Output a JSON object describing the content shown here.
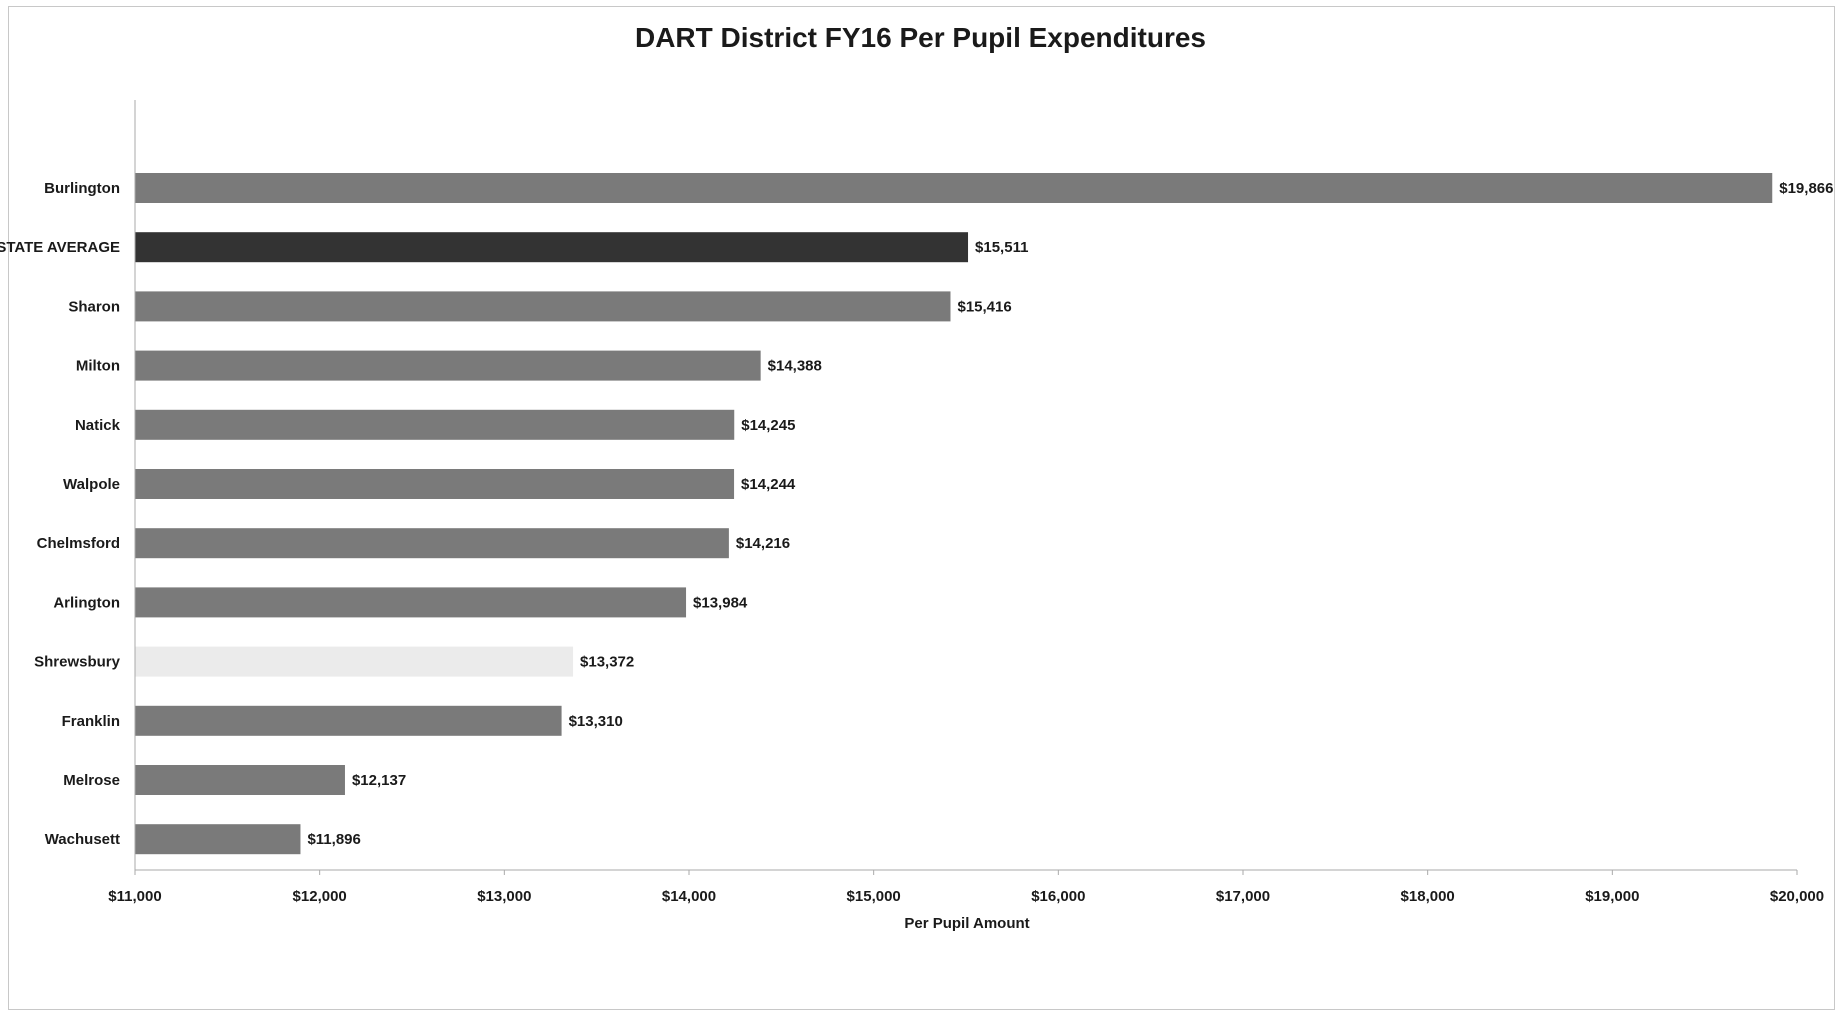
{
  "chart_data": {
    "type": "bar",
    "orientation": "horizontal",
    "title": "DART District FY16 Per Pupil Expenditures",
    "xlabel": "Per Pupil Amount",
    "ylabel": "",
    "xlim": [
      11000,
      20000
    ],
    "x_ticks": [
      11000,
      12000,
      13000,
      14000,
      15000,
      16000,
      17000,
      18000,
      19000,
      20000
    ],
    "x_tick_labels": [
      "$11,000",
      "$12,000",
      "$13,000",
      "$14,000",
      "$15,000",
      "$16,000",
      "$17,000",
      "$18,000",
      "$19,000",
      "$20,000"
    ],
    "grid": false,
    "legend": "none",
    "categories": [
      "Burlington",
      "STATE AVERAGE",
      "Sharon",
      "Milton",
      "Natick",
      "Walpole",
      "Chelmsford",
      "Arlington",
      "Shrewsbury",
      "Franklin",
      "Melrose",
      "Wachusett"
    ],
    "values": [
      19866,
      15511,
      15416,
      14388,
      14245,
      14244,
      14216,
      13984,
      13372,
      13310,
      12137,
      11896
    ],
    "value_labels": [
      "$19,866",
      "$15,511",
      "$15,416",
      "$14,388",
      "$14,245",
      "$14,244",
      "$14,216",
      "$13,984",
      "$13,372",
      "$13,310",
      "$12,137",
      "$11,896"
    ],
    "bar_colors": [
      "#7a7a7a",
      "#333333",
      "#7a7a7a",
      "#7a7a7a",
      "#7a7a7a",
      "#7a7a7a",
      "#7a7a7a",
      "#7a7a7a",
      "#ebebeb",
      "#7a7a7a",
      "#7a7a7a",
      "#7a7a7a"
    ],
    "axis_color": "#aaaaaa"
  }
}
